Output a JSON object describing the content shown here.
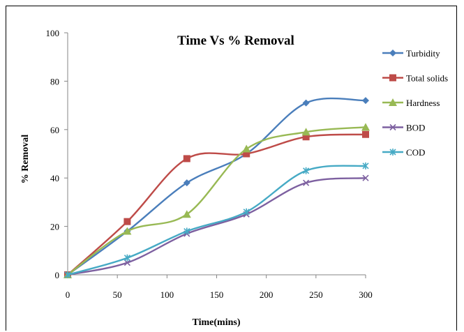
{
  "chart_data": {
    "type": "line",
    "title": "Time Vs % Removal",
    "xlabel": "Time(mins)",
    "ylabel": "% Removal",
    "xlim": [
      0,
      300
    ],
    "ylim": [
      0,
      100
    ],
    "x_ticks": [
      "0",
      "50",
      "100",
      "150",
      "200",
      "250",
      "300"
    ],
    "y_ticks": [
      "0",
      "20",
      "40",
      "60",
      "80",
      "100"
    ],
    "legend_position": "right",
    "grid": false,
    "x": [
      0,
      60,
      120,
      180,
      240,
      300
    ],
    "series": [
      {
        "name": "Turbidity",
        "color": "#4a7ebb",
        "marker": "diamond",
        "values": [
          0,
          18,
          38,
          50,
          71,
          72
        ]
      },
      {
        "name": "Total solids",
        "color": "#be4b48",
        "marker": "square",
        "values": [
          0,
          22,
          48,
          50,
          57,
          58
        ]
      },
      {
        "name": "Hardness",
        "color": "#98b954",
        "marker": "triangle",
        "values": [
          0,
          18,
          25,
          52,
          59,
          61
        ]
      },
      {
        "name": "BOD",
        "color": "#7d60a0",
        "marker": "x",
        "values": [
          0,
          5,
          17,
          25,
          38,
          40
        ]
      },
      {
        "name": "COD",
        "color": "#46aac5",
        "marker": "star",
        "values": [
          0,
          7,
          18,
          26,
          43,
          45
        ]
      }
    ]
  }
}
